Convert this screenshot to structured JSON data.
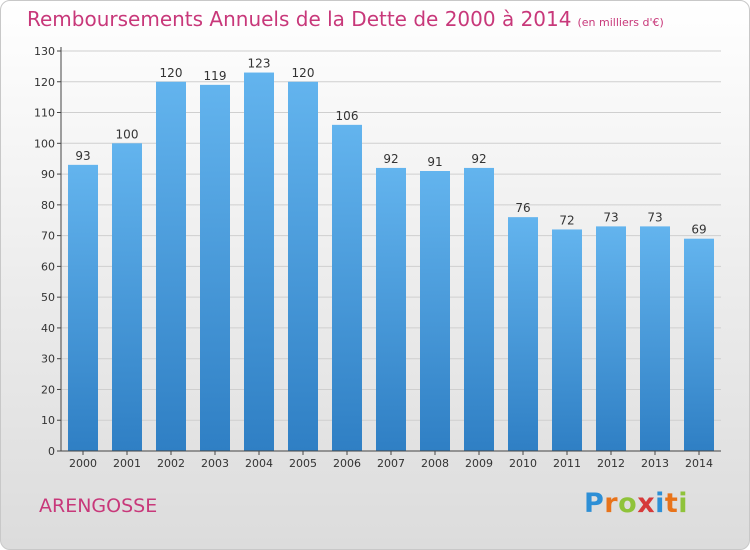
{
  "header": {
    "title": "Remboursements Annuels de la Dette de 2000 à 2014",
    "subtitle": "(en milliers d'€)"
  },
  "footer": {
    "commune": "ARENGOSSE",
    "logo_letters": [
      "P",
      "r",
      "o",
      "x",
      "i",
      "t",
      "i"
    ],
    "logo_colors": [
      "#2d8fd6",
      "#e8731a",
      "#8fc33a",
      "#d63a3a",
      "#2d8fd6",
      "#e8731a",
      "#8fc33a"
    ]
  },
  "chart_data": {
    "type": "bar",
    "title": "Remboursements Annuels de la Dette de 2000 à 2014",
    "categories": [
      "2000",
      "2001",
      "2002",
      "2003",
      "2004",
      "2005",
      "2006",
      "2007",
      "2008",
      "2009",
      "2010",
      "2011",
      "2012",
      "2013",
      "2014"
    ],
    "values": [
      93,
      100,
      120,
      119,
      123,
      120,
      106,
      92,
      91,
      92,
      76,
      72,
      73,
      73,
      69
    ],
    "ylim": [
      0,
      130
    ],
    "yticks": [
      0,
      10,
      20,
      30,
      40,
      50,
      60,
      70,
      80,
      90,
      100,
      110,
      120,
      130
    ],
    "grid": true,
    "colors": {
      "bar_top": "#63b4ee",
      "bar_bottom": "#2f7fc4",
      "grid": "#cfcfcf",
      "axis": "#444444"
    }
  }
}
